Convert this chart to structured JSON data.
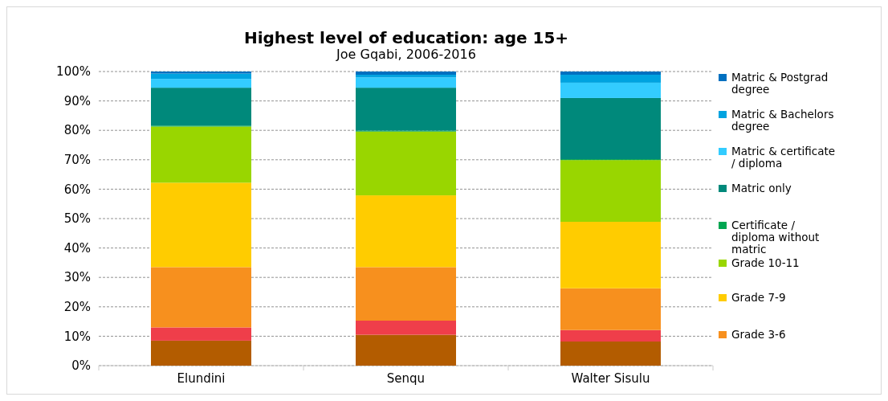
{
  "chart_data": {
    "type": "bar",
    "title": "Highest level of education: age 15+",
    "subtitle": "Joe Gqabi, 2006-2016",
    "stacked": true,
    "categories": [
      "Elundini",
      "Senqu",
      "Walter Sisulu"
    ],
    "series": [
      {
        "color": "#b35c00",
        "values": [
          8.5,
          10.5,
          8.2
        ]
      },
      {
        "color": "#ef3e4a",
        "values": [
          4.5,
          4.8,
          3.9
        ]
      },
      {
        "name": "Grade 3-6",
        "color": "#f7901e",
        "values": [
          20.5,
          18.2,
          14.2
        ]
      },
      {
        "name": "Grade 7-9",
        "color": "#ffcc00",
        "values": [
          28.7,
          24.4,
          22.6
        ]
      },
      {
        "name": "Grade 10-11",
        "color": "#99d600",
        "values": [
          19.1,
          21.7,
          21.0
        ]
      },
      {
        "name": "Certificate / diploma without matric",
        "color": "#00a651",
        "values": [
          0.3,
          0.3,
          0.3
        ]
      },
      {
        "name": "Matric only",
        "color": "#00897b",
        "values": [
          12.9,
          14.6,
          20.8
        ]
      },
      {
        "name": "Matric & certificate / diploma",
        "color": "#33ccff",
        "values": [
          3.0,
          3.5,
          5.2
        ]
      },
      {
        "name": "Matric & Bachelors degree",
        "color": "#00a3e0",
        "values": [
          1.8,
          0.9,
          2.7
        ]
      },
      {
        "name": "Matric & Postgrad degree",
        "color": "#0070c0",
        "values": [
          0.7,
          1.1,
          1.1
        ]
      }
    ],
    "ylim": [
      0,
      100
    ],
    "yticks": [
      {
        "value": 0,
        "label": "0%"
      },
      {
        "value": 10,
        "label": "10%"
      },
      {
        "value": 20,
        "label": "20%"
      },
      {
        "value": 30,
        "label": "30%"
      },
      {
        "value": 40,
        "label": "40%"
      },
      {
        "value": 50,
        "label": "50%"
      },
      {
        "value": 60,
        "label": "60%"
      },
      {
        "value": 70,
        "label": "70%"
      },
      {
        "value": 80,
        "label": "80%"
      },
      {
        "value": 90,
        "label": "90%"
      },
      {
        "value": 100,
        "label": "100%"
      }
    ],
    "grid": "y",
    "legend": "right"
  }
}
